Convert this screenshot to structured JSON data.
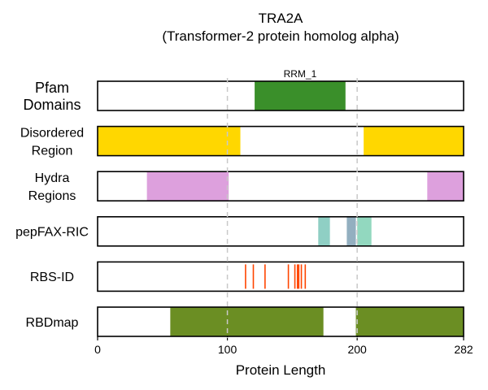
{
  "chart_data": {
    "type": "bar",
    "orientation": "horizontal-tracks",
    "title": "TRA2A",
    "subtitle": "(Transformer-2 protein homolog alpha)",
    "xlabel": "Protein Length",
    "xlim": [
      0,
      282
    ],
    "xticks": [
      0,
      100,
      200,
      282
    ],
    "gridlines": [
      100,
      200
    ],
    "grid": "dashed vertical at 100 and 200",
    "tracks": [
      {
        "label": [
          "Pfam",
          "Domains"
        ],
        "segments": [
          {
            "start": 121,
            "end": 191,
            "color": "#3a8f2a",
            "label": "RRM_1"
          }
        ]
      },
      {
        "label": [
          "Disordered",
          "Region"
        ],
        "segments": [
          {
            "start": 0,
            "end": 110,
            "color": "#ffd700"
          },
          {
            "start": 205,
            "end": 282,
            "color": "#ffd700"
          }
        ]
      },
      {
        "label": [
          "Hydra",
          "Regions"
        ],
        "segments": [
          {
            "start": 38,
            "end": 101,
            "color": "#dda0dd"
          },
          {
            "start": 254,
            "end": 282,
            "color": "#dda0dd"
          }
        ]
      },
      {
        "label": [
          "pepFAX-RIC"
        ],
        "segments": [
          {
            "start": 170,
            "end": 179,
            "color": "#8fcfc4"
          },
          {
            "start": 192,
            "end": 199,
            "color": "#93afc0"
          },
          {
            "start": 200,
            "end": 211,
            "color": "#92d8bf"
          }
        ]
      },
      {
        "label": [
          "RBS-ID"
        ],
        "lines": [
          114,
          120,
          129,
          147,
          152,
          154,
          155,
          157,
          160
        ],
        "line_color": "#ff4500"
      },
      {
        "label": [
          "RBDmap"
        ],
        "segments": [
          {
            "start": 56,
            "end": 174,
            "color": "#6b8e23"
          },
          {
            "start": 199,
            "end": 282,
            "color": "#6b8e23"
          }
        ]
      }
    ]
  }
}
